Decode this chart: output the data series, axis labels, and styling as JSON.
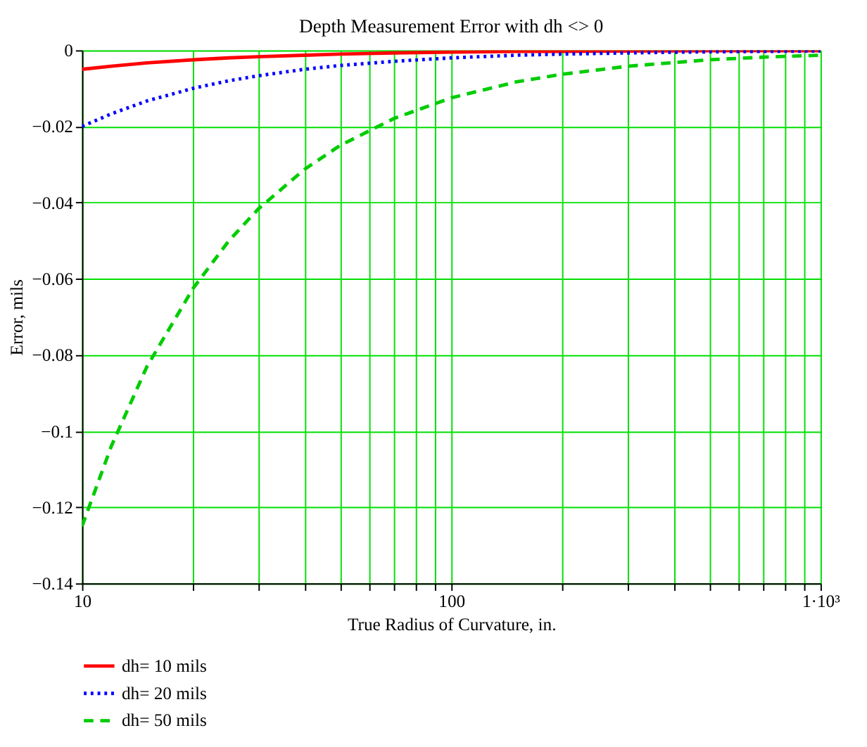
{
  "chart_data": {
    "type": "line",
    "title": "Depth Measurement Error with dh <> 0",
    "xlabel": "True Radius of Curvature, in.",
    "ylabel": "Error, mils",
    "x": [
      10,
      12,
      15,
      20,
      25,
      30,
      40,
      50,
      70,
      100,
      150,
      200,
      300,
      500,
      700,
      1000
    ],
    "series": [
      {
        "name": "dh= 10 mils",
        "color": "#ff0000",
        "line_style": "solid",
        "values": [
          -0.005,
          -0.0042,
          -0.0033,
          -0.0025,
          -0.002,
          -0.0017,
          -0.0013,
          -0.001,
          -0.0007,
          -0.0005,
          -0.0003,
          -0.0003,
          -0.0002,
          -0.0001,
          -0.0001,
          -0.0001
        ]
      },
      {
        "name": "dh= 20 mils",
        "color": "#0000ff",
        "line_style": "dotted",
        "values": [
          -0.02,
          -0.0167,
          -0.0133,
          -0.01,
          -0.008,
          -0.0067,
          -0.005,
          -0.004,
          -0.0029,
          -0.002,
          -0.0013,
          -0.001,
          -0.0007,
          -0.0004,
          -0.0003,
          -0.0002
        ]
      },
      {
        "name": "dh= 50 mils",
        "color": "#00cc00",
        "line_style": "dashed",
        "values": [
          -0.125,
          -0.104,
          -0.083,
          -0.0625,
          -0.05,
          -0.0417,
          -0.0313,
          -0.025,
          -0.0179,
          -0.0125,
          -0.0083,
          -0.0063,
          -0.0042,
          -0.0025,
          -0.0018,
          -0.0013
        ]
      }
    ],
    "log": "x",
    "xlim": [
      10,
      1000
    ],
    "ylim": [
      -0.14,
      0
    ],
    "xticks": [
      10,
      {
        "value": 20,
        "label": null
      },
      {
        "value": 30,
        "label": null
      },
      {
        "value": 40,
        "label": null
      },
      {
        "value": 50,
        "label": null
      },
      {
        "value": 60,
        "label": null
      },
      {
        "value": 70,
        "label": null
      },
      {
        "value": 80,
        "label": null
      },
      {
        "value": 90,
        "label": null
      },
      100,
      {
        "value": 200,
        "label": null
      },
      {
        "value": 300,
        "label": null
      },
      {
        "value": 400,
        "label": null
      },
      {
        "value": 500,
        "label": null
      },
      {
        "value": 600,
        "label": null
      },
      {
        "value": 700,
        "label": null
      },
      {
        "value": 800,
        "label": null
      },
      {
        "value": 900,
        "label": null
      },
      {
        "value": 1000,
        "label": "1·10³"
      }
    ],
    "yticks": [
      0,
      {
        "value": -0.02,
        "label": "−0.02"
      },
      {
        "value": -0.04,
        "label": "−0.04"
      },
      {
        "value": -0.06,
        "label": "−0.06"
      },
      {
        "value": -0.08,
        "label": "−0.08"
      },
      {
        "value": -0.1,
        "label": "−0.1"
      },
      {
        "value": -0.12,
        "label": "−0.12"
      },
      {
        "value": -0.14,
        "label": "−0.14"
      }
    ],
    "grid": true,
    "legend": "bottom left"
  }
}
